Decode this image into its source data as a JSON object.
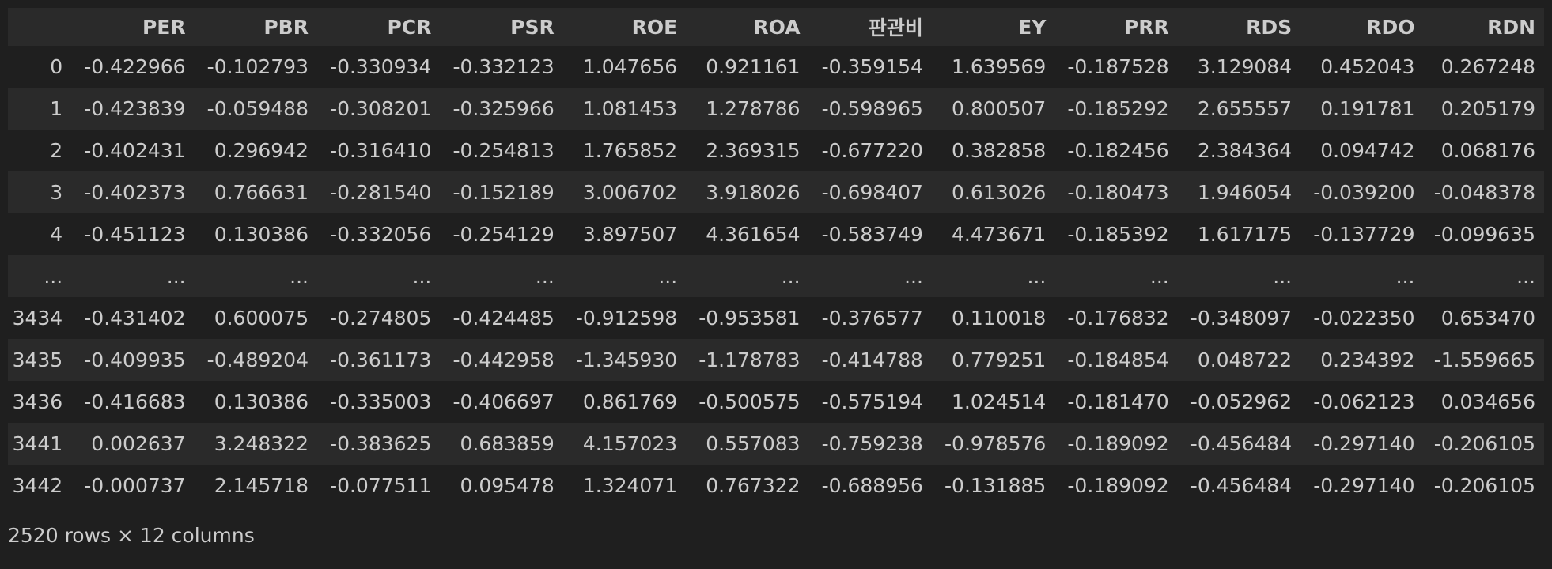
{
  "table": {
    "index_header": "",
    "columns": [
      "PER",
      "PBR",
      "PCR",
      "PSR",
      "ROE",
      "ROA",
      "판관비",
      "EY",
      "PRR",
      "RDS",
      "RDO",
      "RDN"
    ],
    "rows": [
      {
        "index": "0",
        "cells": [
          "-0.422966",
          "-0.102793",
          "-0.330934",
          "-0.332123",
          "1.047656",
          "0.921161",
          "-0.359154",
          "1.639569",
          "-0.187528",
          "3.129084",
          "0.452043",
          "0.267248"
        ]
      },
      {
        "index": "1",
        "cells": [
          "-0.423839",
          "-0.059488",
          "-0.308201",
          "-0.325966",
          "1.081453",
          "1.278786",
          "-0.598965",
          "0.800507",
          "-0.185292",
          "2.655557",
          "0.191781",
          "0.205179"
        ]
      },
      {
        "index": "2",
        "cells": [
          "-0.402431",
          "0.296942",
          "-0.316410",
          "-0.254813",
          "1.765852",
          "2.369315",
          "-0.677220",
          "0.382858",
          "-0.182456",
          "2.384364",
          "0.094742",
          "0.068176"
        ]
      },
      {
        "index": "3",
        "cells": [
          "-0.402373",
          "0.766631",
          "-0.281540",
          "-0.152189",
          "3.006702",
          "3.918026",
          "-0.698407",
          "0.613026",
          "-0.180473",
          "1.946054",
          "-0.039200",
          "-0.048378"
        ]
      },
      {
        "index": "4",
        "cells": [
          "-0.451123",
          "0.130386",
          "-0.332056",
          "-0.254129",
          "3.897507",
          "4.361654",
          "-0.583749",
          "4.473671",
          "-0.185392",
          "1.617175",
          "-0.137729",
          "-0.099635"
        ]
      },
      {
        "index": "...",
        "cells": [
          "...",
          "...",
          "...",
          "...",
          "...",
          "...",
          "...",
          "...",
          "...",
          "...",
          "...",
          "..."
        ]
      },
      {
        "index": "3434",
        "cells": [
          "-0.431402",
          "0.600075",
          "-0.274805",
          "-0.424485",
          "-0.912598",
          "-0.953581",
          "-0.376577",
          "0.110018",
          "-0.176832",
          "-0.348097",
          "-0.022350",
          "0.653470"
        ]
      },
      {
        "index": "3435",
        "cells": [
          "-0.409935",
          "-0.489204",
          "-0.361173",
          "-0.442958",
          "-1.345930",
          "-1.178783",
          "-0.414788",
          "0.779251",
          "-0.184854",
          "0.048722",
          "0.234392",
          "-1.559665"
        ]
      },
      {
        "index": "3436",
        "cells": [
          "-0.416683",
          "0.130386",
          "-0.335003",
          "-0.406697",
          "0.861769",
          "-0.500575",
          "-0.575194",
          "1.024514",
          "-0.181470",
          "-0.052962",
          "-0.062123",
          "0.034656"
        ]
      },
      {
        "index": "3441",
        "cells": [
          "0.002637",
          "3.248322",
          "-0.383625",
          "0.683859",
          "4.157023",
          "0.557083",
          "-0.759238",
          "-0.978576",
          "-0.189092",
          "-0.456484",
          "-0.297140",
          "-0.206105"
        ]
      },
      {
        "index": "3442",
        "cells": [
          "-0.000737",
          "2.145718",
          "-0.077511",
          "0.095478",
          "1.324071",
          "0.767322",
          "-0.688956",
          "-0.131885",
          "-0.189092",
          "-0.456484",
          "-0.297140",
          "-0.206105"
        ]
      }
    ]
  },
  "footer": {
    "shape_text": "2520 rows × 12 columns"
  }
}
